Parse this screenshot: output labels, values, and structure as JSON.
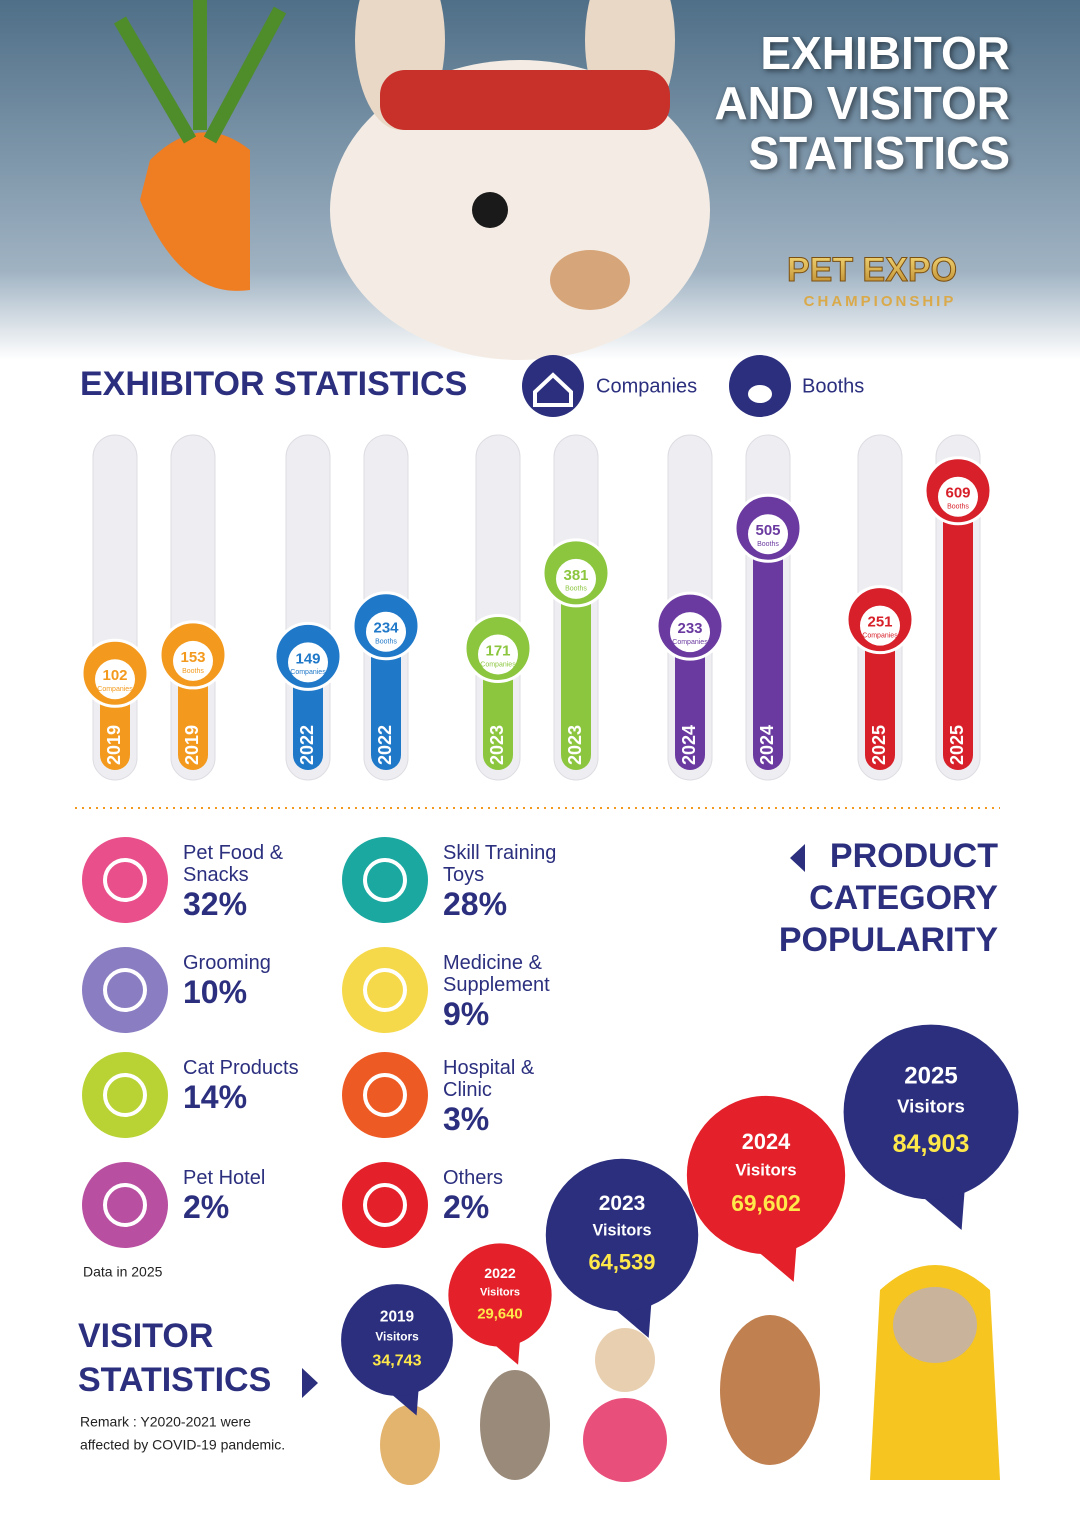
{
  "header": {
    "title_lines": [
      "EXHIBITOR",
      "AND VISITOR",
      "STATISTICS"
    ],
    "logo_main": "PET EXPO",
    "logo_sub": "CHAMPIONSHIP"
  },
  "exhibitor": {
    "title": "EXHIBITOR STATISTICS",
    "years": [
      "2019",
      "2022",
      "2023",
      "2024",
      "2025"
    ],
    "colors": [
      "#f39a1e",
      "#1f78c8",
      "#8cc63f",
      "#6a3aa0",
      "#d7202a"
    ],
    "series": [
      {
        "name": "Companies",
        "values": [
          102,
          149,
          171,
          233,
          251
        ]
      },
      {
        "name": "Booths",
        "values": [
          153,
          234,
          381,
          505,
          609
        ]
      }
    ]
  },
  "products": {
    "title_lines": [
      "PRODUCT",
      "CATEGORY",
      "POPULARITY"
    ],
    "note": "Data in 2025",
    "items": [
      {
        "name": "Pet Food & Snacks",
        "share": "32%",
        "color": "#e94f8a"
      },
      {
        "name": "Skill Training Toys",
        "share": "28%",
        "color": "#1aa8a0"
      },
      {
        "name": "Grooming",
        "share": "10%",
        "color": "#8a7dc2"
      },
      {
        "name": "Medicine & Supplement",
        "share": "9%",
        "color": "#f5d94a"
      },
      {
        "name": "Cat Products",
        "share": "14%",
        "color": "#b9d335"
      },
      {
        "name": "Hospital & Clinic",
        "share": "3%",
        "color": "#ee5a24"
      },
      {
        "name": "Pet Hotel",
        "share": "2%",
        "color": "#b84fa0"
      },
      {
        "name": "Others",
        "share": "2%",
        "color": "#e4202a"
      }
    ]
  },
  "visitors": {
    "title_lines": [
      "VISITOR",
      "STATISTICS"
    ],
    "remark_lines": [
      "Remark : Y2020-2021 were",
      "affected by COVID-19 pandemic."
    ],
    "unit": "Visitors",
    "years": [
      "2019",
      "2022",
      "2023",
      "2024",
      "2025"
    ],
    "values": [
      34743,
      29640,
      64539,
      69602,
      84903
    ],
    "value_labels": [
      "34,743",
      "29,640",
      "64,539",
      "69,602",
      "84,903"
    ],
    "colors": [
      "#2b2f7e",
      "#e4202a",
      "#2b2f7e",
      "#e4202a",
      "#2b2f7e"
    ]
  }
}
